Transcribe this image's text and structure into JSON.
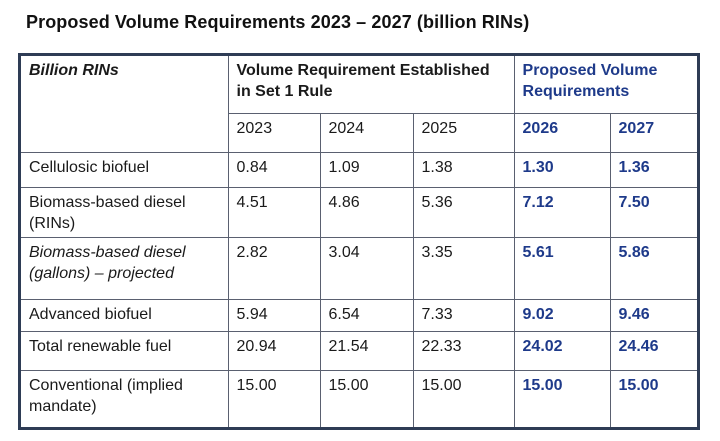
{
  "title": "Proposed Volume Requirements 2023 – 2027 (billion RINs)",
  "table": {
    "corner_label": "Billion RINs",
    "set1_header": "Volume Requirement Established in Set 1 Rule",
    "proposed_header": "Proposed Volume Requirements",
    "years": [
      "2023",
      "2024",
      "2025",
      "2026",
      "2027"
    ],
    "rows": [
      {
        "label": "Cellulosic biofuel",
        "values": [
          "0.84",
          "1.09",
          "1.38",
          "1.30",
          "1.36"
        ]
      },
      {
        "label": "Biomass-based diesel (RINs)",
        "values": [
          "4.51",
          "4.86",
          "5.36",
          "7.12",
          "7.50"
        ]
      },
      {
        "label": "Biomass-based diesel (gallons) – projected",
        "values": [
          "2.82",
          "3.04",
          "3.35",
          "5.61",
          "5.86"
        ]
      },
      {
        "label": "Advanced biofuel",
        "values": [
          "5.94",
          "6.54",
          "7.33",
          "9.02",
          "9.46"
        ]
      },
      {
        "label": "Total renewable fuel",
        "values": [
          "20.94",
          "21.54",
          "22.33",
          "24.02",
          "24.46"
        ]
      },
      {
        "label": "Conventional (implied mandate)",
        "values": [
          "15.00",
          "15.00",
          "15.00",
          "15.00",
          "15.00"
        ]
      }
    ]
  }
}
